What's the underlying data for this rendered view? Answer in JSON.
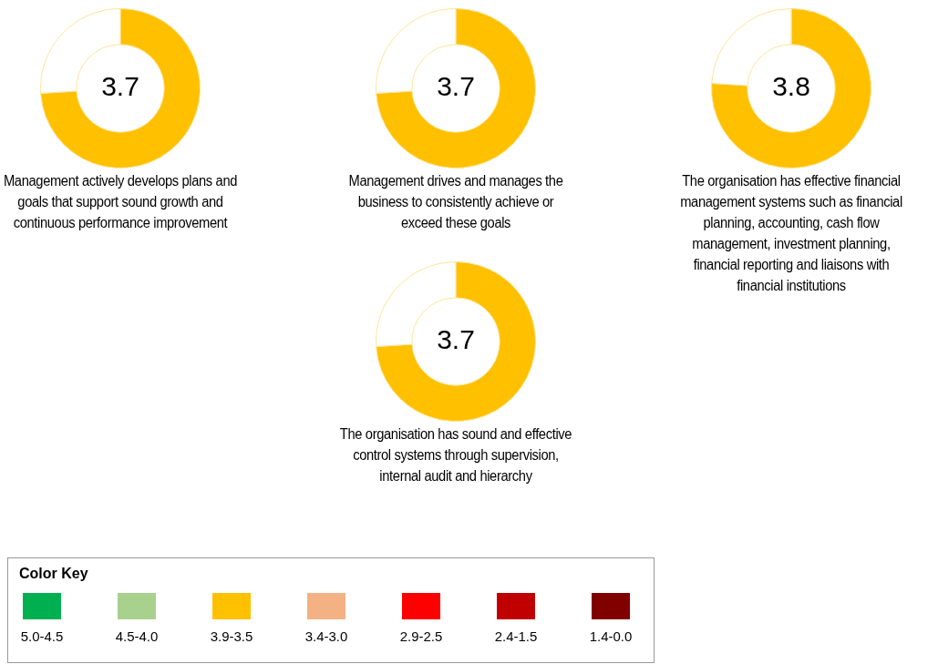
{
  "chart_data": [
    {
      "type": "donut",
      "title": "Management actively develops plans and goals that support sound growth and continuous performance improvement",
      "categories": [
        null,
        null
      ],
      "values": [
        3.7,
        1.3
      ],
      "colors": [
        "#ffc000",
        "#ffffff"
      ],
      "value_labels": [
        "3.7",
        null
      ]
    },
    {
      "type": "donut",
      "title": "Management drives and manages the business to consistently achieve or exceed these goals",
      "categories": [
        null,
        null
      ],
      "values": [
        3.7,
        1.3
      ],
      "colors": [
        "#ffc000",
        "#ffffff"
      ],
      "value_labels": [
        "3.7",
        null
      ]
    },
    {
      "type": "donut",
      "title": "The organisation has effective financial management systems such as financial planning, accounting, cash flow management, investment planning, financial reporting and liaisons with financial institutions",
      "categories": [
        null,
        null
      ],
      "values": [
        3.8,
        1.2
      ],
      "colors": [
        "#ffc000",
        "#ffffff"
      ],
      "value_labels": [
        "3.8",
        null
      ]
    },
    {
      "type": "donut",
      "title": "The organisation has sound and effective control systems through supervision, internal audit and hierarchy",
      "categories": [
        null,
        null
      ],
      "values": [
        3.7,
        1.3
      ],
      "colors": [
        "#ffc000",
        "#ffffff"
      ],
      "value_labels": [
        "3.7",
        null
      ]
    },
    {
      "type": "other",
      "title": "Color Key",
      "categories": [
        "5.0-4.5",
        "4.5-4.0",
        "3.9-3.5",
        "3.4-3.0",
        "2.9-2.5",
        "2.4-1.5",
        "1.4-0.0"
      ],
      "colors": [
        "#00b050",
        "#a9d18e",
        "#ffc000",
        "#f4b183",
        "#ff0000",
        "#c00000",
        "#800000"
      ]
    }
  ]
}
